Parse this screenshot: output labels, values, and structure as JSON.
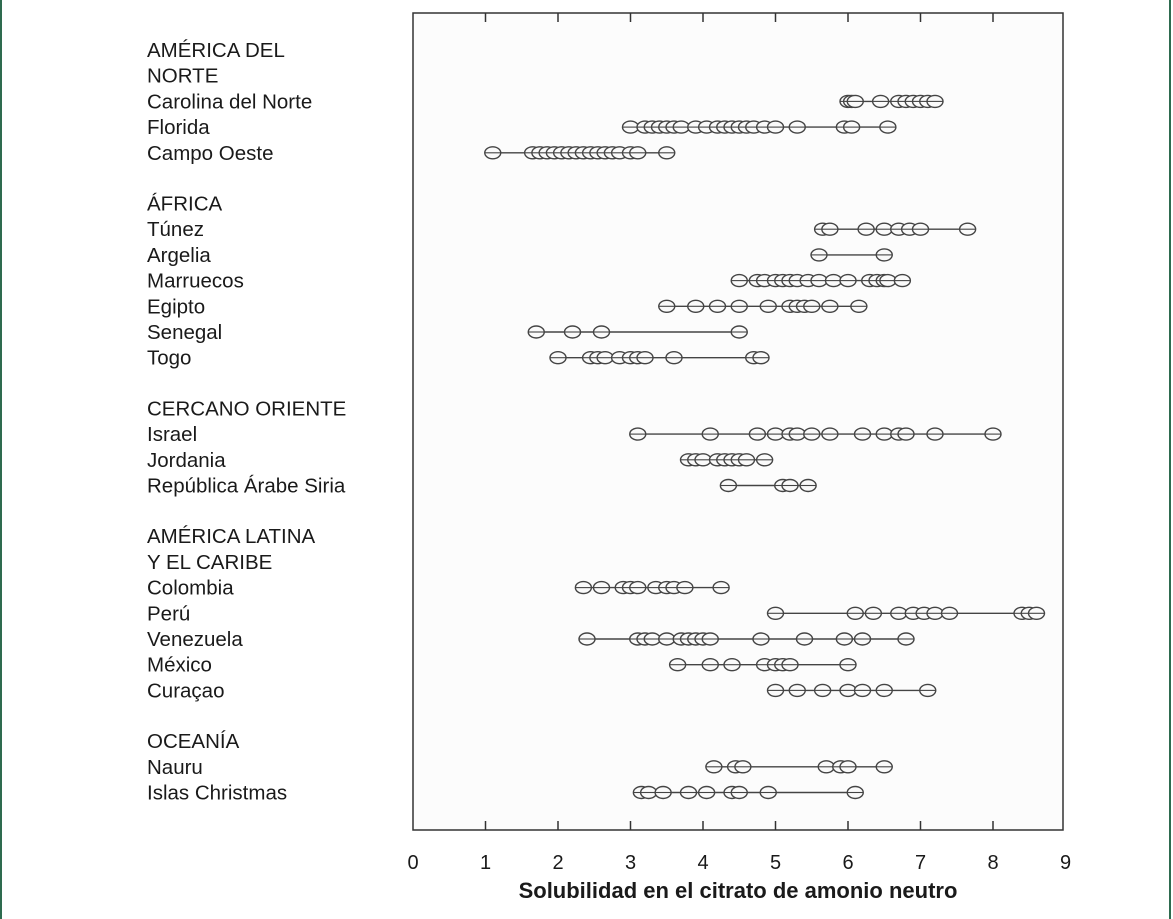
{
  "chart_data": {
    "type": "scatter",
    "xlabel": "Solubilidad en el citrato de amonio neutro",
    "ylabel": "",
    "title": "",
    "xlim": [
      0,
      9
    ],
    "xticks": [
      "0",
      "1",
      "2",
      "3",
      "4",
      "5",
      "6",
      "7",
      "8",
      "9"
    ],
    "grid": false,
    "groups": [
      {
        "name": "AMÉRICA DEL NORTE",
        "name_lines": [
          "AMÉRICA DEL",
          "NORTE"
        ],
        "rows": [
          {
            "name": "Carolina del Norte",
            "values": [
              6.0,
              6.05,
              6.1,
              6.45,
              6.7,
              6.8,
              6.9,
              7.0,
              7.1,
              7.2
            ]
          },
          {
            "name": "Florida",
            "values": [
              3.0,
              3.2,
              3.3,
              3.4,
              3.5,
              3.6,
              3.7,
              3.9,
              4.05,
              4.2,
              4.3,
              4.4,
              4.5,
              4.6,
              4.7,
              4.85,
              5.0,
              5.3,
              5.95,
              6.05,
              6.55
            ]
          },
          {
            "name": "Campo Oeste",
            "values": [
              1.1,
              1.65,
              1.75,
              1.85,
              1.95,
              2.05,
              2.15,
              2.25,
              2.35,
              2.45,
              2.55,
              2.65,
              2.75,
              2.85,
              3.0,
              3.1,
              3.5
            ]
          }
        ]
      },
      {
        "name": "ÁFRICA",
        "name_lines": [
          "ÁFRICA"
        ],
        "rows": [
          {
            "name": "Túnez",
            "values": [
              5.65,
              5.75,
              6.25,
              6.5,
              6.7,
              6.85,
              7.0,
              7.65
            ]
          },
          {
            "name": "Argelia",
            "values": [
              5.6,
              6.5
            ]
          },
          {
            "name": "Marruecos",
            "values": [
              4.5,
              4.75,
              4.85,
              5.0,
              5.1,
              5.2,
              5.3,
              5.45,
              5.6,
              5.8,
              6.0,
              6.3,
              6.4,
              6.5,
              6.55,
              6.75
            ]
          },
          {
            "name": "Egipto",
            "values": [
              3.5,
              3.9,
              4.2,
              4.5,
              4.9,
              5.2,
              5.3,
              5.4,
              5.5,
              5.75,
              6.15
            ]
          },
          {
            "name": "Senegal",
            "values": [
              1.7,
              2.2,
              2.6,
              4.5
            ]
          },
          {
            "name": "Togo",
            "values": [
              2.0,
              2.45,
              2.55,
              2.65,
              2.85,
              3.0,
              3.1,
              3.2,
              3.6,
              4.7,
              4.8
            ]
          }
        ]
      },
      {
        "name": "CERCANO ORIENTE",
        "name_lines": [
          "CERCANO ORIENTE"
        ],
        "rows": [
          {
            "name": "Israel",
            "values": [
              3.1,
              4.1,
              4.75,
              5.0,
              5.2,
              5.3,
              5.5,
              5.75,
              6.2,
              6.5,
              6.7,
              6.8,
              7.2,
              8.0
            ]
          },
          {
            "name": "Jordania",
            "values": [
              3.8,
              3.9,
              4.0,
              4.2,
              4.3,
              4.4,
              4.5,
              4.6,
              4.85
            ]
          },
          {
            "name": "República Árabe Siria",
            "values": [
              4.35,
              5.1,
              5.2,
              5.45
            ]
          }
        ]
      },
      {
        "name": "AMÉRICA LATINA Y EL CARIBE",
        "name_lines": [
          "AMÉRICA LATINA",
          "Y EL CARIBE"
        ],
        "rows": [
          {
            "name": "Colombia",
            "values": [
              2.35,
              2.6,
              2.9,
              3.0,
              3.1,
              3.35,
              3.5,
              3.6,
              3.75,
              4.25
            ]
          },
          {
            "name": "Perú",
            "values": [
              5.0,
              6.1,
              6.35,
              6.7,
              6.9,
              7.05,
              7.2,
              7.4,
              8.4,
              8.5,
              8.6
            ]
          },
          {
            "name": "Venezuela",
            "values": [
              2.4,
              3.1,
              3.2,
              3.3,
              3.5,
              3.7,
              3.8,
              3.9,
              4.0,
              4.1,
              4.8,
              5.4,
              5.95,
              6.2,
              6.8
            ]
          },
          {
            "name": "México",
            "values": [
              3.65,
              4.1,
              4.4,
              4.85,
              5.0,
              5.1,
              5.2,
              6.0
            ]
          },
          {
            "name": "Curaçao",
            "values": [
              5.0,
              5.3,
              5.65,
              6.0,
              6.2,
              6.5,
              7.1
            ]
          }
        ]
      },
      {
        "name": "OCEANÍA",
        "name_lines": [
          "OCEANÍA"
        ],
        "rows": [
          {
            "name": "Nauru",
            "values": [
              4.15,
              4.45,
              4.55,
              5.7,
              5.9,
              6.0,
              6.5
            ]
          },
          {
            "name": "Islas Christmas",
            "values": [
              3.15,
              3.25,
              3.45,
              3.8,
              4.05,
              4.4,
              4.5,
              4.9,
              6.1
            ]
          }
        ]
      }
    ]
  }
}
